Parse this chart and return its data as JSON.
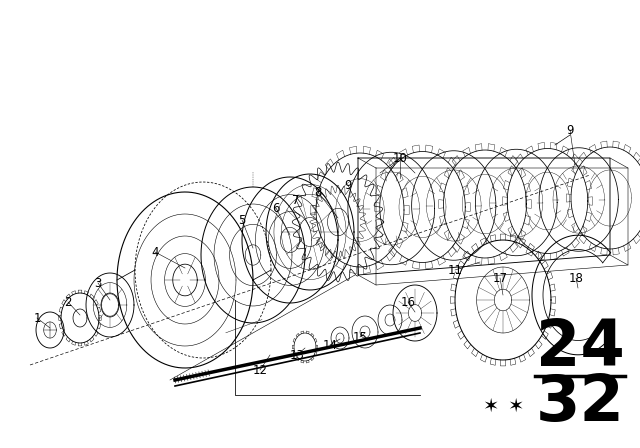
{
  "background_color": "#ffffff",
  "line_color": "#000000",
  "fig_width": 6.4,
  "fig_height": 4.48,
  "dpi": 100,
  "page_number_top": "24",
  "page_number_bot": "32",
  "stars": "★★"
}
